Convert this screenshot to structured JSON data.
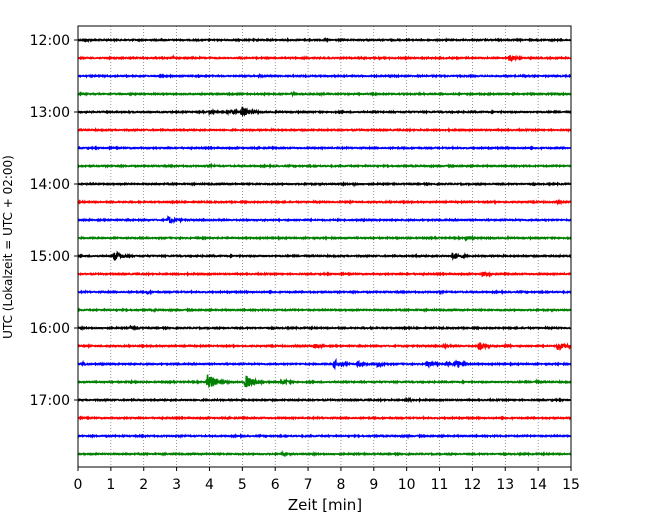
{
  "chart_data": {
    "type": "line",
    "title": "",
    "xlabel": "Zeit  [min]",
    "ylabel": "UTC (Lokalzeit = UTC + 02:00)",
    "xlim": [
      0,
      15
    ],
    "x_ticks": [
      0,
      1,
      2,
      3,
      4,
      5,
      6,
      7,
      8,
      9,
      10,
      11,
      12,
      13,
      14,
      15
    ],
    "y_ticks": [
      "12:00",
      "13:00",
      "14:00",
      "15:00",
      "16:00",
      "17:00"
    ],
    "grid": "vertical dotted",
    "row_interval_minutes": 15,
    "row_colors": [
      "#000000",
      "#ff0000",
      "#0000ff",
      "#008000"
    ],
    "traces": [
      {
        "start": "12:00",
        "events": [
          {
            "t": 0.2,
            "amp": 0.18
          },
          {
            "t": 7.5,
            "amp": 0.12
          }
        ]
      },
      {
        "start": "12:15",
        "events": [
          {
            "t": 13.1,
            "amp": 0.4
          },
          {
            "t": 2.9,
            "amp": 0.12
          }
        ]
      },
      {
        "start": "12:30",
        "events": [
          {
            "t": 5.5,
            "amp": 0.12
          }
        ]
      },
      {
        "start": "12:45",
        "events": [
          {
            "t": 6.5,
            "amp": 0.15
          },
          {
            "t": 7.4,
            "amp": 0.1
          }
        ]
      },
      {
        "start": "13:00",
        "events": [
          {
            "t": 4.0,
            "amp": 0.2
          },
          {
            "t": 5.0,
            "amp": 0.6
          },
          {
            "t": 4.6,
            "amp": 0.3
          }
        ]
      },
      {
        "start": "13:15",
        "events": []
      },
      {
        "start": "13:30",
        "events": []
      },
      {
        "start": "13:45",
        "events": [
          {
            "t": 4.0,
            "amp": 0.12
          }
        ]
      },
      {
        "start": "14:00",
        "events": [
          {
            "t": 8.4,
            "amp": 0.12
          }
        ]
      },
      {
        "start": "14:15",
        "events": [
          {
            "t": 14.6,
            "amp": 0.12
          }
        ]
      },
      {
        "start": "14:30",
        "events": [
          {
            "t": 2.75,
            "amp": 0.45
          }
        ]
      },
      {
        "start": "14:45",
        "events": [
          {
            "t": 11.8,
            "amp": 0.25
          },
          {
            "t": 10.1,
            "amp": 0.1
          }
        ]
      },
      {
        "start": "15:00",
        "events": [
          {
            "t": 1.1,
            "amp": 0.55
          },
          {
            "t": 11.4,
            "amp": 0.45
          },
          {
            "t": 10.3,
            "amp": 0.1
          }
        ]
      },
      {
        "start": "15:15",
        "events": [
          {
            "t": 12.3,
            "amp": 0.3
          },
          {
            "t": 10.0,
            "amp": 0.1
          }
        ]
      },
      {
        "start": "15:30",
        "events": [
          {
            "t": 2.1,
            "amp": 0.15
          },
          {
            "t": 11.0,
            "amp": 0.1
          }
        ]
      },
      {
        "start": "15:45",
        "events": [
          {
            "t": 2.3,
            "amp": 0.12
          }
        ]
      },
      {
        "start": "16:00",
        "events": [
          {
            "t": 1.6,
            "amp": 0.25
          },
          {
            "t": 4.5,
            "amp": 0.08
          }
        ]
      },
      {
        "start": "16:15",
        "events": [
          {
            "t": 7.2,
            "amp": 0.3
          },
          {
            "t": 12.2,
            "amp": 0.45
          },
          {
            "t": 14.6,
            "amp": 0.45
          },
          {
            "t": 11.1,
            "amp": 0.2
          },
          {
            "t": 13.0,
            "amp": 0.2
          }
        ]
      },
      {
        "start": "16:30",
        "events": [
          {
            "t": 7.8,
            "amp": 0.45
          },
          {
            "t": 8.5,
            "amp": 0.3
          },
          {
            "t": 9.1,
            "amp": 0.3
          },
          {
            "t": 10.6,
            "amp": 0.35
          },
          {
            "t": 11.5,
            "amp": 0.45
          },
          {
            "t": 0.1,
            "amp": 0.2
          },
          {
            "t": 11.2,
            "amp": 0.3
          }
        ]
      },
      {
        "start": "16:45",
        "events": [
          {
            "t": 3.95,
            "amp": 0.95
          },
          {
            "t": 5.1,
            "amp": 0.8
          },
          {
            "t": 6.2,
            "amp": 0.3
          },
          {
            "t": 1.6,
            "amp": 0.12
          },
          {
            "t": 13.9,
            "amp": 0.15
          }
        ]
      },
      {
        "start": "17:00",
        "events": [
          {
            "t": 10.0,
            "amp": 0.2
          }
        ]
      },
      {
        "start": "17:15",
        "events": []
      },
      {
        "start": "17:30",
        "events": [
          {
            "t": 1.3,
            "amp": 0.1
          },
          {
            "t": 10.0,
            "amp": 0.1
          }
        ]
      },
      {
        "start": "17:45",
        "events": [
          {
            "t": 6.2,
            "amp": 0.15
          }
        ]
      }
    ]
  }
}
